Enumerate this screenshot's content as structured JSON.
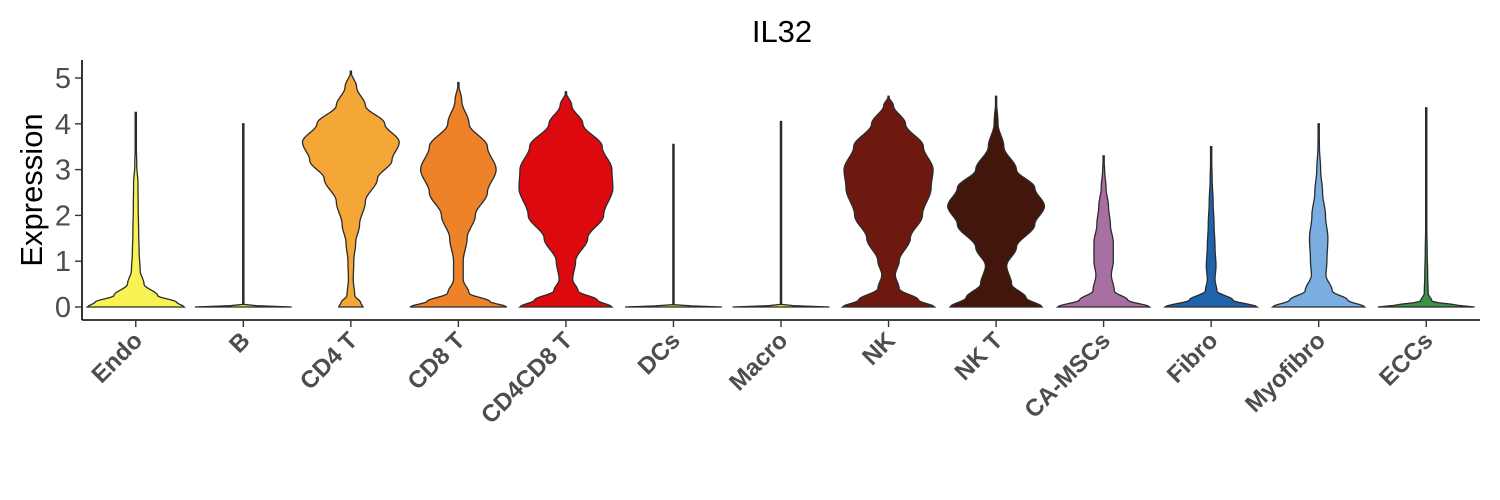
{
  "chart_data": {
    "type": "violin",
    "title": "IL32",
    "xlabel": "",
    "ylabel": "Expression",
    "ylim": [
      -0.2,
      5.4
    ],
    "yticks": [
      0,
      1,
      2,
      3,
      4,
      5
    ],
    "grid": false,
    "legend": "none",
    "categories": [
      "Endo",
      "B",
      "CD4 T",
      "CD8 T",
      "CD4CD8 T",
      "DCs",
      "Macro",
      "NK",
      "NK T",
      "CA-MSCs",
      "Fibro",
      "Myofibro",
      "ECCs"
    ],
    "colors": [
      "#f8f254",
      "#f5ed4b",
      "#f4a736",
      "#ee8229",
      "#dc0a0f",
      "#dbd246",
      "#e9dd4c",
      "#6e190f",
      "#43160c",
      "#a870a2",
      "#1f63ad",
      "#7aade0",
      "#3c9248"
    ],
    "violins": [
      {
        "name": "Endo",
        "max": 4.25,
        "profile": [
          [
            0,
            1
          ],
          [
            0.1,
            0.85
          ],
          [
            0.25,
            0.45
          ],
          [
            0.5,
            0.17
          ],
          [
            0.8,
            0.09
          ],
          [
            1.2,
            0.07
          ],
          [
            1.6,
            0.06
          ],
          [
            2.2,
            0.05
          ],
          [
            2.7,
            0.045
          ],
          [
            3.1,
            0.02
          ],
          [
            3.6,
            0.008
          ],
          [
            4.25,
            0
          ]
        ]
      },
      {
        "name": "B",
        "max": 4.0,
        "profile": [
          [
            0,
            1
          ],
          [
            0.015,
            0.6
          ],
          [
            0.04,
            0.01
          ],
          [
            4.0,
            0.008
          ]
        ]
      },
      {
        "name": "CD4 T",
        "max": 5.15,
        "profile": [
          [
            0,
            0.25
          ],
          [
            0.1,
            0.2
          ],
          [
            0.25,
            0.08
          ],
          [
            0.6,
            0.05
          ],
          [
            1.0,
            0.06
          ],
          [
            1.4,
            0.1
          ],
          [
            1.8,
            0.18
          ],
          [
            2.3,
            0.3
          ],
          [
            2.8,
            0.55
          ],
          [
            3.2,
            0.85
          ],
          [
            3.6,
            1.0
          ],
          [
            4.0,
            0.7
          ],
          [
            4.4,
            0.3
          ],
          [
            4.8,
            0.12
          ],
          [
            5.15,
            0
          ]
        ]
      },
      {
        "name": "CD8 T",
        "max": 4.9,
        "profile": [
          [
            0,
            1
          ],
          [
            0.12,
            0.65
          ],
          [
            0.3,
            0.22
          ],
          [
            0.6,
            0.1
          ],
          [
            1.0,
            0.1
          ],
          [
            1.5,
            0.18
          ],
          [
            2.0,
            0.35
          ],
          [
            2.5,
            0.6
          ],
          [
            3.0,
            0.78
          ],
          [
            3.5,
            0.6
          ],
          [
            4.0,
            0.22
          ],
          [
            4.5,
            0.07
          ],
          [
            4.9,
            0
          ]
        ]
      },
      {
        "name": "CD4CD8 T",
        "max": 4.7,
        "profile": [
          [
            0,
            0.95
          ],
          [
            0.15,
            0.65
          ],
          [
            0.35,
            0.25
          ],
          [
            0.6,
            0.14
          ],
          [
            1.0,
            0.2
          ],
          [
            1.5,
            0.45
          ],
          [
            2.0,
            0.78
          ],
          [
            2.6,
            0.97
          ],
          [
            3.0,
            0.95
          ],
          [
            3.5,
            0.75
          ],
          [
            4.0,
            0.35
          ],
          [
            4.4,
            0.12
          ],
          [
            4.7,
            0
          ]
        ]
      },
      {
        "name": "DCs",
        "max": 3.55,
        "profile": [
          [
            0,
            1
          ],
          [
            0.015,
            0.6
          ],
          [
            0.04,
            0.01
          ],
          [
            3.55,
            0.008
          ]
        ]
      },
      {
        "name": "Macro",
        "max": 4.05,
        "profile": [
          [
            0,
            1
          ],
          [
            0.015,
            0.6
          ],
          [
            0.04,
            0.01
          ],
          [
            4.05,
            0.008
          ]
        ]
      },
      {
        "name": "NK",
        "max": 4.6,
        "profile": [
          [
            0,
            0.95
          ],
          [
            0.15,
            0.62
          ],
          [
            0.4,
            0.22
          ],
          [
            0.7,
            0.14
          ],
          [
            1.0,
            0.22
          ],
          [
            1.5,
            0.45
          ],
          [
            2.0,
            0.7
          ],
          [
            2.6,
            0.88
          ],
          [
            3.0,
            0.92
          ],
          [
            3.5,
            0.72
          ],
          [
            4.0,
            0.35
          ],
          [
            4.4,
            0.1
          ],
          [
            4.6,
            0
          ]
        ]
      },
      {
        "name": "NK T",
        "max": 4.6,
        "profile": [
          [
            0,
            0.95
          ],
          [
            0.2,
            0.62
          ],
          [
            0.5,
            0.32
          ],
          [
            0.9,
            0.22
          ],
          [
            1.3,
            0.42
          ],
          [
            1.8,
            0.8
          ],
          [
            2.2,
            1.0
          ],
          [
            2.6,
            0.8
          ],
          [
            3.0,
            0.42
          ],
          [
            3.5,
            0.16
          ],
          [
            4.0,
            0.04
          ],
          [
            4.6,
            0
          ]
        ]
      },
      {
        "name": "CA-MSCs",
        "max": 3.3,
        "profile": [
          [
            0,
            0.95
          ],
          [
            0.15,
            0.5
          ],
          [
            0.35,
            0.22
          ],
          [
            0.7,
            0.16
          ],
          [
            1.0,
            0.2
          ],
          [
            1.4,
            0.2
          ],
          [
            1.8,
            0.14
          ],
          [
            2.2,
            0.1
          ],
          [
            2.6,
            0.05
          ],
          [
            3.0,
            0.02
          ],
          [
            3.3,
            0
          ]
        ]
      },
      {
        "name": "Fibro",
        "max": 3.5,
        "profile": [
          [
            0,
            0.95
          ],
          [
            0.15,
            0.45
          ],
          [
            0.35,
            0.12
          ],
          [
            0.6,
            0.08
          ],
          [
            0.9,
            0.1
          ],
          [
            1.3,
            0.08
          ],
          [
            1.8,
            0.06
          ],
          [
            2.3,
            0.04
          ],
          [
            2.8,
            0.02
          ],
          [
            3.5,
            0
          ]
        ]
      },
      {
        "name": "Myofibro",
        "max": 4.0,
        "profile": [
          [
            0,
            0.95
          ],
          [
            0.15,
            0.6
          ],
          [
            0.35,
            0.28
          ],
          [
            0.7,
            0.15
          ],
          [
            1.0,
            0.17
          ],
          [
            1.5,
            0.19
          ],
          [
            2.0,
            0.14
          ],
          [
            2.5,
            0.08
          ],
          [
            3.0,
            0.04
          ],
          [
            3.5,
            0.015
          ],
          [
            4.0,
            0
          ]
        ]
      },
      {
        "name": "ECCs",
        "max": 4.35,
        "profile": [
          [
            0,
            1
          ],
          [
            0.05,
            0.55
          ],
          [
            0.12,
            0.12
          ],
          [
            0.3,
            0.04
          ],
          [
            0.7,
            0.03
          ],
          [
            1.2,
            0.02
          ],
          [
            1.8,
            0.01
          ],
          [
            2.5,
            0.005
          ],
          [
            4.35,
            0
          ]
        ]
      }
    ]
  }
}
